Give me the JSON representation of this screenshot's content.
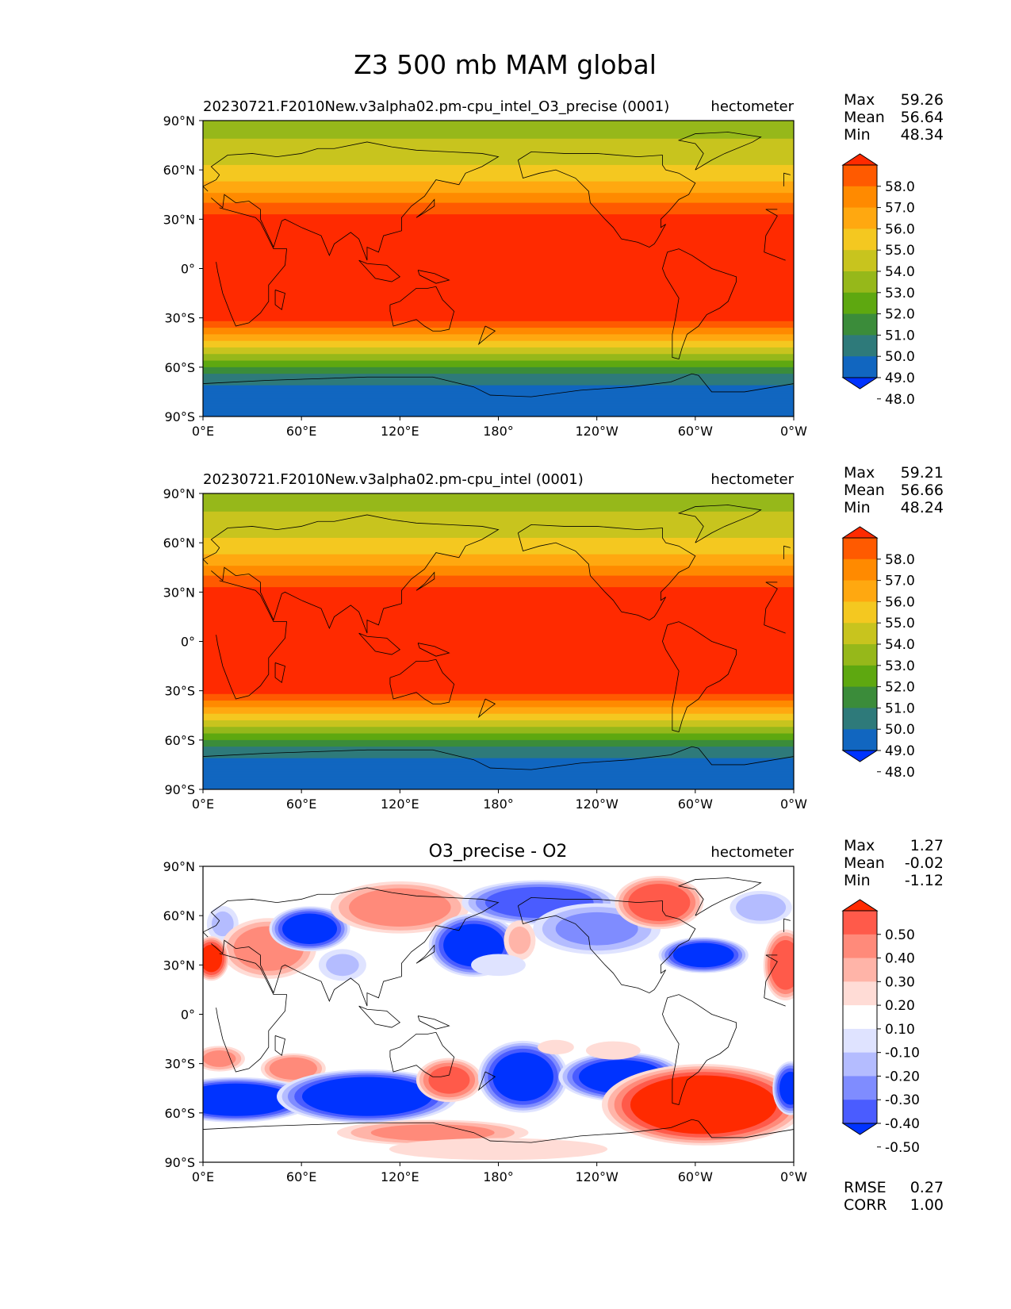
{
  "figure": {
    "title": "Z3 500 mb MAM global"
  },
  "chart_data": [
    {
      "type": "heatmap",
      "title": "20230721.F2010New.v3alpha02.pm-cpu_intel_O3_precise (0001)",
      "units": "hectometer",
      "stats": [
        {
          "label": "Max",
          "value": "59.26"
        },
        {
          "label": "Mean",
          "value": "56.64"
        },
        {
          "label": "Min",
          "value": "48.34"
        }
      ],
      "colorbar": {
        "extend": "both",
        "ticks": [
          "58.0",
          "57.0",
          "56.0",
          "55.0",
          "54.0",
          "53.0",
          "52.0",
          "51.0",
          "50.0",
          "49.0",
          "48.0"
        ],
        "colors_top_to_bottom": [
          "#ff2a00",
          "#ff5a00",
          "#ff8a00",
          "#ffa810",
          "#f4c820",
          "#c8c41e",
          "#96b81a",
          "#5ea810",
          "#3b8c3a",
          "#2e7a7a",
          "#1166c0",
          "#0033ff"
        ]
      },
      "x_ticks": [
        "0°E",
        "60°E",
        "120°E",
        "180°",
        "120°W",
        "60°W",
        "0°W"
      ],
      "y_ticks": [
        "90°N",
        "60°N",
        "30°N",
        "0°",
        "30°S",
        "60°S",
        "90°S"
      ],
      "xlim": [
        0,
        360
      ],
      "ylim": [
        -90,
        90
      ],
      "field_bands_lat": [
        {
          "lat": 90,
          "value": 52.5
        },
        {
          "lat": 75,
          "value": 53.2
        },
        {
          "lat": 60,
          "value": 54.2
        },
        {
          "lat": 50,
          "value": 55.5
        },
        {
          "lat": 40,
          "value": 57.0
        },
        {
          "lat": 30,
          "value": 58.5
        },
        {
          "lat": 0,
          "value": 58.8
        },
        {
          "lat": -30,
          "value": 58.3
        },
        {
          "lat": -38,
          "value": 56.5
        },
        {
          "lat": -45,
          "value": 54.5
        },
        {
          "lat": -55,
          "value": 52.0
        },
        {
          "lat": -65,
          "value": 49.5
        },
        {
          "lat": -75,
          "value": 48.5
        },
        {
          "lat": -90,
          "value": 48.4
        }
      ]
    },
    {
      "type": "heatmap",
      "title": "20230721.F2010New.v3alpha02.pm-cpu_intel (0001)",
      "units": "hectometer",
      "stats": [
        {
          "label": "Max",
          "value": "59.21"
        },
        {
          "label": "Mean",
          "value": "56.66"
        },
        {
          "label": "Min",
          "value": "48.24"
        }
      ],
      "colorbar": {
        "extend": "both",
        "ticks": [
          "58.0",
          "57.0",
          "56.0",
          "55.0",
          "54.0",
          "53.0",
          "52.0",
          "51.0",
          "50.0",
          "49.0",
          "48.0"
        ],
        "colors_top_to_bottom": [
          "#ff2a00",
          "#ff5a00",
          "#ff8a00",
          "#ffa810",
          "#f4c820",
          "#c8c41e",
          "#96b81a",
          "#5ea810",
          "#3b8c3a",
          "#2e7a7a",
          "#1166c0",
          "#0033ff"
        ]
      },
      "x_ticks": [
        "0°E",
        "60°E",
        "120°E",
        "180°",
        "120°W",
        "60°W",
        "0°W"
      ],
      "y_ticks": [
        "90°N",
        "60°N",
        "30°N",
        "0°",
        "30°S",
        "60°S",
        "90°S"
      ],
      "xlim": [
        0,
        360
      ],
      "ylim": [
        -90,
        90
      ],
      "field_bands_lat": [
        {
          "lat": 90,
          "value": 52.5
        },
        {
          "lat": 75,
          "value": 53.2
        },
        {
          "lat": 60,
          "value": 54.2
        },
        {
          "lat": 50,
          "value": 55.5
        },
        {
          "lat": 40,
          "value": 57.0
        },
        {
          "lat": 30,
          "value": 58.5
        },
        {
          "lat": 0,
          "value": 58.8
        },
        {
          "lat": -30,
          "value": 58.3
        },
        {
          "lat": -38,
          "value": 56.5
        },
        {
          "lat": -45,
          "value": 54.5
        },
        {
          "lat": -55,
          "value": 52.0
        },
        {
          "lat": -65,
          "value": 49.5
        },
        {
          "lat": -75,
          "value": 48.5
        },
        {
          "lat": -90,
          "value": 48.4
        }
      ]
    },
    {
      "type": "heatmap",
      "title": "O3_precise - O2",
      "units": "hectometer",
      "stats": [
        {
          "label": "Max",
          "value": "1.27"
        },
        {
          "label": "Mean",
          "value": "-0.02"
        },
        {
          "label": "Min",
          "value": "-1.12"
        }
      ],
      "extra_stats": [
        {
          "label": "RMSE",
          "value": "0.27"
        },
        {
          "label": "CORR",
          "value": "1.00"
        }
      ],
      "colorbar": {
        "extend": "both",
        "ticks": [
          "0.50",
          "0.40",
          "0.30",
          "0.20",
          "0.10",
          "-0.10",
          "-0.20",
          "-0.30",
          "-0.40",
          "-0.50"
        ],
        "colors_top_to_bottom": [
          "#ff2a00",
          "#ff5a4a",
          "#ff8a7a",
          "#ffb4a8",
          "#ffdcd6",
          "#ffffff",
          "#dfe3ff",
          "#b4bcff",
          "#7f8cff",
          "#4a5cff",
          "#0033ff"
        ]
      },
      "x_ticks": [
        "0°E",
        "60°E",
        "120°E",
        "180°",
        "120°W",
        "60°W",
        "0°W"
      ],
      "y_ticks": [
        "90°N",
        "60°N",
        "30°N",
        "0°",
        "30°S",
        "60°S",
        "90°S"
      ],
      "xlim": [
        0,
        360
      ],
      "ylim": [
        -90,
        90
      ],
      "anomalies": [
        {
          "lon": 12,
          "lat": 55,
          "rx": 8,
          "ry": 9,
          "value": -0.2
        },
        {
          "lon": 40,
          "lat": 40,
          "rx": 22,
          "ry": 14,
          "value": 0.35
        },
        {
          "lon": 5,
          "lat": 34,
          "rx": 8,
          "ry": 10,
          "value": 0.5
        },
        {
          "lon": 65,
          "lat": 52,
          "rx": 18,
          "ry": 10,
          "value": -0.55
        },
        {
          "lon": 85,
          "lat": 30,
          "rx": 12,
          "ry": 8,
          "value": -0.2
        },
        {
          "lon": 120,
          "lat": 65,
          "rx": 32,
          "ry": 12,
          "value": 0.35
        },
        {
          "lon": 165,
          "lat": 42,
          "rx": 20,
          "ry": 14,
          "value": -0.55
        },
        {
          "lon": 205,
          "lat": 68,
          "rx": 35,
          "ry": 10,
          "value": -0.45
        },
        {
          "lon": 240,
          "lat": 52,
          "rx": 30,
          "ry": 12,
          "value": -0.3
        },
        {
          "lon": 193,
          "lat": 45,
          "rx": 8,
          "ry": 10,
          "value": 0.2
        },
        {
          "lon": 278,
          "lat": 68,
          "rx": 20,
          "ry": 12,
          "value": 0.45
        },
        {
          "lon": 305,
          "lat": 36,
          "rx": 20,
          "ry": 8,
          "value": -0.55
        },
        {
          "lon": 355,
          "lat": 30,
          "rx": 10,
          "ry": 16,
          "value": 0.45
        },
        {
          "lon": 340,
          "lat": 65,
          "rx": 15,
          "ry": 8,
          "value": -0.25
        },
        {
          "lon": 10,
          "lat": -27,
          "rx": 12,
          "ry": 6,
          "value": 0.3
        },
        {
          "lon": 55,
          "lat": -33,
          "rx": 15,
          "ry": 7,
          "value": 0.35
        },
        {
          "lon": 20,
          "lat": -52,
          "rx": 35,
          "ry": 10,
          "value": -0.6
        },
        {
          "lon": 100,
          "lat": -50,
          "rx": 40,
          "ry": 12,
          "value": -0.6
        },
        {
          "lon": 150,
          "lat": -40,
          "rx": 15,
          "ry": 10,
          "value": 0.4
        },
        {
          "lon": 195,
          "lat": -38,
          "rx": 20,
          "ry": 16,
          "value": -0.55
        },
        {
          "lon": 255,
          "lat": -38,
          "rx": 28,
          "ry": 11,
          "value": -0.55
        },
        {
          "lon": 305,
          "lat": -55,
          "rx": 45,
          "ry": 18,
          "value": 0.6
        },
        {
          "lon": 140,
          "lat": -72,
          "rx": 45,
          "ry": 6,
          "value": 0.3
        },
        {
          "lon": 180,
          "lat": -82,
          "rx": 60,
          "ry": 6,
          "value": 0.15
        },
        {
          "lon": 250,
          "lat": -22,
          "rx": 15,
          "ry": 5,
          "value": 0.15
        },
        {
          "lon": 215,
          "lat": -20,
          "rx": 10,
          "ry": 4,
          "value": 0.15
        },
        {
          "lon": 180,
          "lat": 30,
          "rx": 15,
          "ry": 6,
          "value": -0.15
        },
        {
          "lon": 358,
          "lat": -45,
          "rx": 8,
          "ry": 12,
          "value": -0.5
        }
      ]
    }
  ]
}
